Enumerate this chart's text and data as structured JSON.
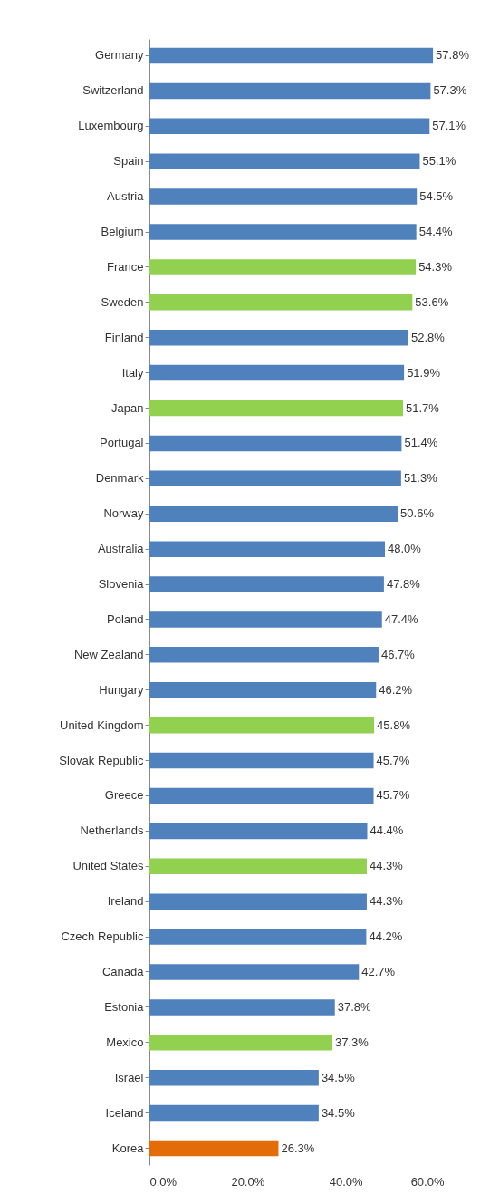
{
  "chart_data": {
    "type": "bar",
    "orientation": "horizontal",
    "categories": [
      "Germany",
      "Switzerland",
      "Luxembourg",
      "Spain",
      "Austria",
      "Belgium",
      "France",
      "Sweden",
      "Finland",
      "Italy",
      "Japan",
      "Portugal",
      "Denmark",
      "Norway",
      "Australia",
      "Slovenia",
      "Poland",
      "New Zealand",
      "Hungary",
      "United Kingdom",
      "Slovak Republic",
      "Greece",
      "Netherlands",
      "United States",
      "Ireland",
      "Czech Republic",
      "Canada",
      "Estonia",
      "Mexico",
      "Israel",
      "Iceland",
      "Korea"
    ],
    "values": [
      57.8,
      57.3,
      57.1,
      55.1,
      54.5,
      54.4,
      54.3,
      53.6,
      52.8,
      51.9,
      51.7,
      51.4,
      51.3,
      50.6,
      48.0,
      47.8,
      47.4,
      46.7,
      46.2,
      45.8,
      45.7,
      45.7,
      44.4,
      44.3,
      44.3,
      44.2,
      42.7,
      37.8,
      37.3,
      34.5,
      34.5,
      26.3
    ],
    "value_labels": [
      "57.8%",
      "57.3%",
      "57.1%",
      "55.1%",
      "54.5%",
      "54.4%",
      "54.3%",
      "53.6%",
      "52.8%",
      "51.9%",
      "51.7%",
      "51.4%",
      "51.3%",
      "50.6%",
      "48.0%",
      "47.8%",
      "47.4%",
      "46.7%",
      "46.2%",
      "45.8%",
      "45.7%",
      "45.7%",
      "44.4%",
      "44.3%",
      "44.3%",
      "44.2%",
      "42.7%",
      "37.8%",
      "37.3%",
      "34.5%",
      "34.5%",
      "26.3%"
    ],
    "colors": [
      "#4f81bd",
      "#4f81bd",
      "#4f81bd",
      "#4f81bd",
      "#4f81bd",
      "#4f81bd",
      "#92d050",
      "#92d050",
      "#4f81bd",
      "#4f81bd",
      "#92d050",
      "#4f81bd",
      "#4f81bd",
      "#4f81bd",
      "#4f81bd",
      "#4f81bd",
      "#4f81bd",
      "#4f81bd",
      "#4f81bd",
      "#92d050",
      "#4f81bd",
      "#4f81bd",
      "#4f81bd",
      "#92d050",
      "#4f81bd",
      "#4f81bd",
      "#4f81bd",
      "#4f81bd",
      "#92d050",
      "#4f81bd",
      "#4f81bd",
      "#e36c09"
    ],
    "xlim": [
      0,
      60
    ],
    "xticks": [
      {
        "value": 0,
        "label": "0.0%"
      },
      {
        "value": 20,
        "label": "20.0%"
      },
      {
        "value": 40,
        "label": "40.0%"
      },
      {
        "value": 60,
        "label": "60.0%"
      }
    ],
    "grid": false,
    "legend": false
  }
}
